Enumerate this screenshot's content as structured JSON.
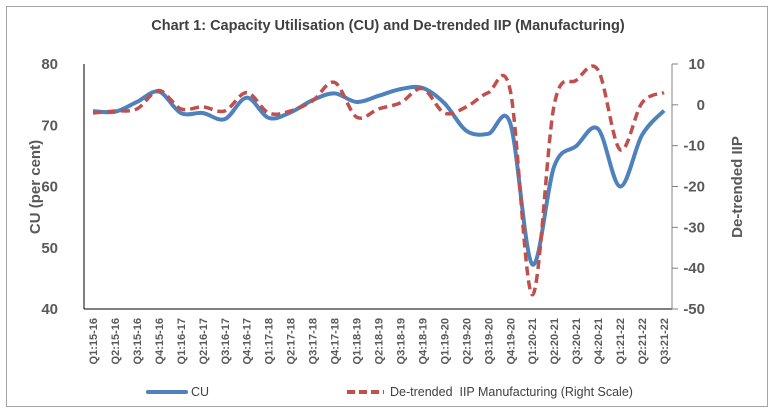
{
  "chart_data": {
    "type": "line",
    "title": "Chart 1: Capacity Utilisation (CU) and De-trended IIP (Manufacturing)",
    "ylabel": "CU (per cent)",
    "ylabel_right": "De-trended IIP",
    "ylim": [
      40,
      80
    ],
    "ylim_right": [
      -50,
      10
    ],
    "yticks": [
      "40",
      "50",
      "60",
      "70",
      "80"
    ],
    "yticks_right": [
      "-50",
      "-40",
      "-30",
      "-20",
      "-10",
      "0",
      "10"
    ],
    "grid": false,
    "legend_position": "bottom",
    "categories": [
      "Q1:15-16",
      "Q2:15-16",
      "Q3:15-16",
      "Q4:15-16",
      "Q1:16-17",
      "Q2:16-17",
      "Q3:16-17",
      "Q4:16-17",
      "Q1:17-18",
      "Q2:17-18",
      "Q3:17-18",
      "Q4:17-18",
      "Q1:18-19",
      "Q2:18-19",
      "Q3:18-19",
      "Q4:18-19",
      "Q1:19-20",
      "Q2:19-20",
      "Q3:19-20",
      "Q4:19-20",
      "Q1:20-21",
      "Q2:20-21",
      "Q3:20-21",
      "Q4:20-21",
      "Q1:21-22",
      "Q2:21-22",
      "Q3:21-22"
    ],
    "series": [
      {
        "name": "CU",
        "axis": "left",
        "color": "#4f81bd",
        "style": "solid",
        "values": [
          72.3,
          72.2,
          73.8,
          75.5,
          72.0,
          72.0,
          71.0,
          74.5,
          71.2,
          72.1,
          74.1,
          75.2,
          73.8,
          74.8,
          75.9,
          76.1,
          73.6,
          69.1,
          68.6,
          70.3,
          47.3,
          63.3,
          66.6,
          69.4,
          60.0,
          68.4,
          72.4
        ]
      },
      {
        "name": "De-trended  IIP Manufacturing (Right Scale)",
        "axis": "right",
        "color": "#c0504d",
        "style": "dashed",
        "values": [
          -2,
          -1.5,
          -1,
          3.5,
          -1,
          -0.5,
          -1.5,
          3,
          -2,
          -1.5,
          1,
          5.5,
          -3,
          -1,
          0.5,
          4,
          -2,
          -0.5,
          3,
          3.5,
          -46.5,
          0,
          6,
          8.5,
          -11,
          0.5,
          3
        ]
      }
    ]
  }
}
